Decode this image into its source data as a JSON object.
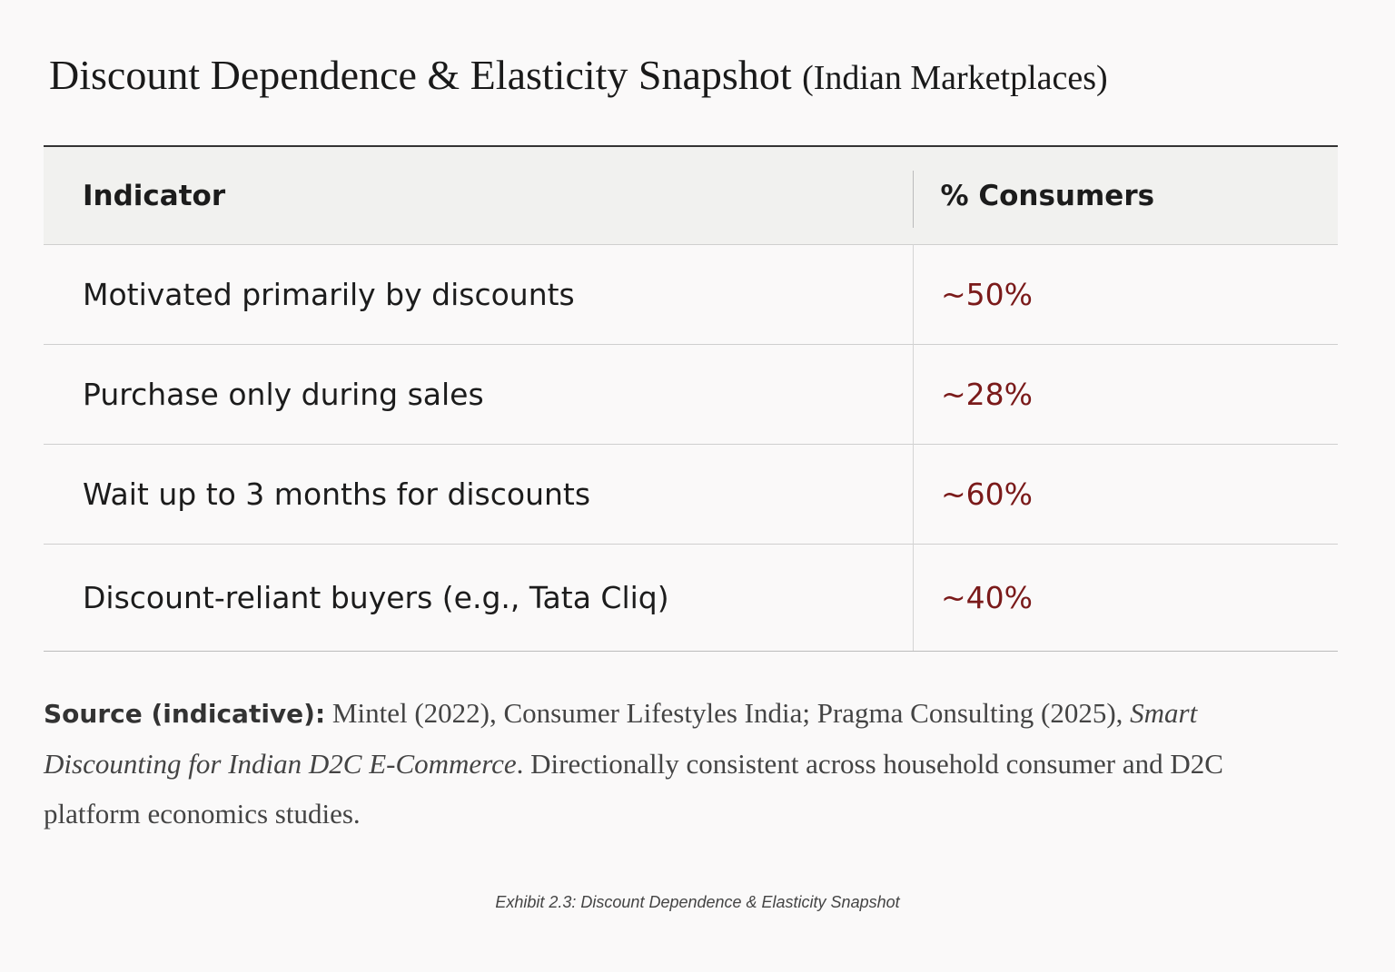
{
  "header": {
    "title": "Discount Dependence & Elasticity Snapshot",
    "subtitle": "(Indian Marketplaces)"
  },
  "table": {
    "columns": [
      "Indicator",
      "% Consumers"
    ],
    "rows": [
      [
        "Motivated primarily by discounts",
        "~50%"
      ],
      [
        "Purchase only during sales",
        "~28%"
      ],
      [
        "Wait up to 3 months for discounts",
        "~60%"
      ],
      [
        "Discount-reliant buyers (e.g., Tata Cliq)",
        "~40%"
      ]
    ]
  },
  "source": {
    "label": "Source (indicative):",
    "text_before": " Mintel (2022), Consumer Lifestyles India; Pragma Consulting (2025), ",
    "italic": "Smart Discounting for Indian D2C E-Commerce",
    "text_after": ". Directionally consistent across household consumer and D2C platform economics studies."
  },
  "caption": "Exhibit 2.3: Discount Dependence & Elasticity Snapshot"
}
